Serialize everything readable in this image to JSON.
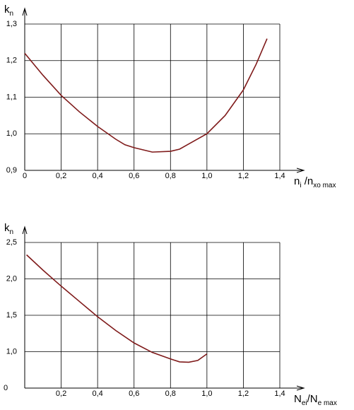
{
  "chart_data": [
    {
      "type": "line",
      "y_label": [
        "k",
        "n"
      ],
      "x_label": [
        "n",
        "i",
        " /n",
        "xo max"
      ],
      "x": [
        0,
        0.1,
        0.2,
        0.3,
        0.4,
        0.5,
        0.55,
        0.6,
        0.7,
        0.8,
        0.85,
        0.9,
        1.0,
        1.1,
        1.2,
        1.27,
        1.33
      ],
      "series": [
        {
          "color": "#7f1a1a",
          "values": [
            1.22,
            1.16,
            1.105,
            1.06,
            1.02,
            0.985,
            0.97,
            0.962,
            0.95,
            0.952,
            0.958,
            0.972,
            1.0,
            1.05,
            1.12,
            1.19,
            1.26
          ]
        }
      ],
      "xlim": [
        0,
        1.4
      ],
      "ylim": [
        0.9,
        1.3
      ],
      "xticks": [
        0,
        {
          "value": 0.2,
          "label": "0,2"
        },
        {
          "value": 0.4,
          "label": "0,4"
        },
        {
          "value": 0.6,
          "label": "0,6"
        },
        {
          "value": 0.8,
          "label": "0,8"
        },
        {
          "value": 1.0,
          "label": "1,0"
        },
        {
          "value": 1.2,
          "label": "1,2"
        },
        {
          "value": 1.4,
          "label": "1,4"
        }
      ],
      "yticks": [
        {
          "value": 0.9,
          "label": "0,9"
        },
        {
          "value": 1.0,
          "label": "1,0"
        },
        {
          "value": 1.1,
          "label": "1,1"
        },
        {
          "value": 1.2,
          "label": "1,2"
        },
        {
          "value": 1.3,
          "label": "1,3"
        }
      ],
      "grid": true
    },
    {
      "type": "line",
      "y_label": [
        "k",
        "n"
      ],
      "x_label": [
        "N",
        "ei",
        "/N",
        "e max"
      ],
      "origin_label": "0",
      "x": [
        0.01,
        0.1,
        0.2,
        0.3,
        0.4,
        0.5,
        0.6,
        0.7,
        0.8,
        0.85,
        0.9,
        0.95,
        1.0
      ],
      "series": [
        {
          "color": "#7f1a1a",
          "values": [
            2.33,
            2.12,
            1.9,
            1.69,
            1.48,
            1.29,
            1.12,
            0.99,
            0.9,
            0.86,
            0.855,
            0.88,
            0.97
          ]
        }
      ],
      "xlim": [
        0,
        1.4
      ],
      "ylim": [
        0.5,
        2.5
      ],
      "xticks": [
        {
          "value": 0.2,
          "label": "0,2"
        },
        {
          "value": 0.4,
          "label": "0,4"
        },
        {
          "value": 0.6,
          "label": "0,6"
        },
        {
          "value": 0.8,
          "label": "0,8"
        },
        {
          "value": 1.0,
          "label": "1,0"
        },
        {
          "value": 1.2,
          "label": "1,2"
        },
        {
          "value": 1.4,
          "label": "1,4"
        }
      ],
      "yticks": [
        {
          "value": 1.0,
          "label": "1,0"
        },
        {
          "value": 1.5,
          "label": "1,5"
        },
        {
          "value": 2.0,
          "label": "2,0"
        },
        {
          "value": 2.5,
          "label": "2,5"
        }
      ],
      "grid": true
    }
  ]
}
